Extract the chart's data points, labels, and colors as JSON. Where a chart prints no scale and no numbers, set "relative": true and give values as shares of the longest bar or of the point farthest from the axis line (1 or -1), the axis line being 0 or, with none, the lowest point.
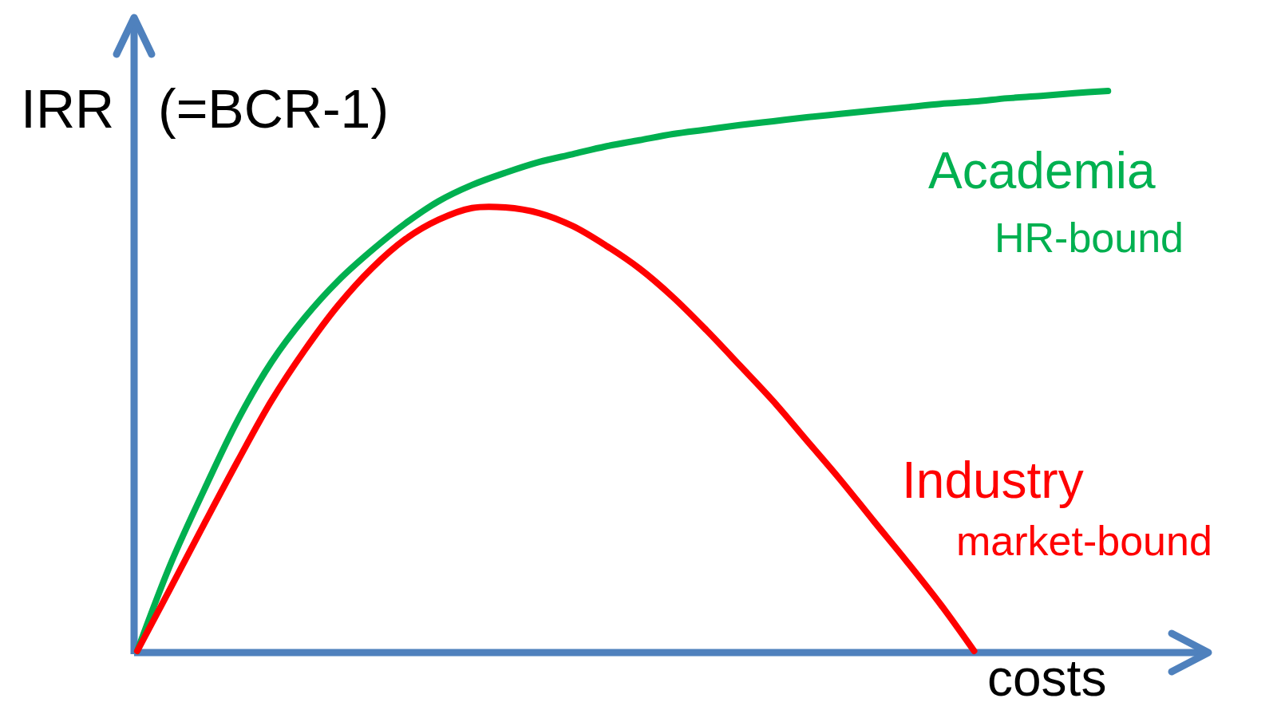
{
  "chart_data": {
    "type": "line",
    "relative": true,
    "ylabel": "IRR (=BCR-1)",
    "xlabel": "costs",
    "legend": false,
    "line_style": "solid",
    "categories": [
      null,
      null,
      null,
      null,
      null,
      null,
      null,
      null,
      null,
      null,
      null,
      null,
      null,
      null,
      null,
      null,
      null,
      null,
      null,
      null,
      null,
      null,
      null,
      null,
      null,
      null,
      null,
      null,
      null,
      null
    ],
    "series": [
      {
        "name": "Academia",
        "color": "#00b050",
        "values": [
          0,
          0.156,
          0.288,
          0.412,
          0.515,
          0.595,
          0.661,
          0.715,
          0.763,
          0.803,
          0.832,
          0.854,
          0.873,
          0.887,
          0.901,
          0.912,
          0.923,
          0.931,
          0.939,
          0.946,
          0.953,
          0.959,
          0.965,
          0.971,
          0.977,
          0.981,
          0.987,
          0.991,
          0.996,
          1
        ]
      },
      {
        "name": "Industry",
        "color": "#ff0000",
        "values": [
          0,
          0.113,
          0.227,
          0.339,
          0.446,
          0.537,
          0.617,
          0.683,
          0.735,
          0.77,
          0.791,
          0.792,
          0.782,
          0.759,
          0.724,
          0.683,
          0.632,
          0.573,
          0.51,
          0.446,
          0.376,
          0.306,
          0.232,
          0.159,
          0.083,
          0,
          null,
          null,
          null,
          null
        ]
      }
    ],
    "annotations": [
      "HR-bound",
      "market-bound"
    ]
  }
}
